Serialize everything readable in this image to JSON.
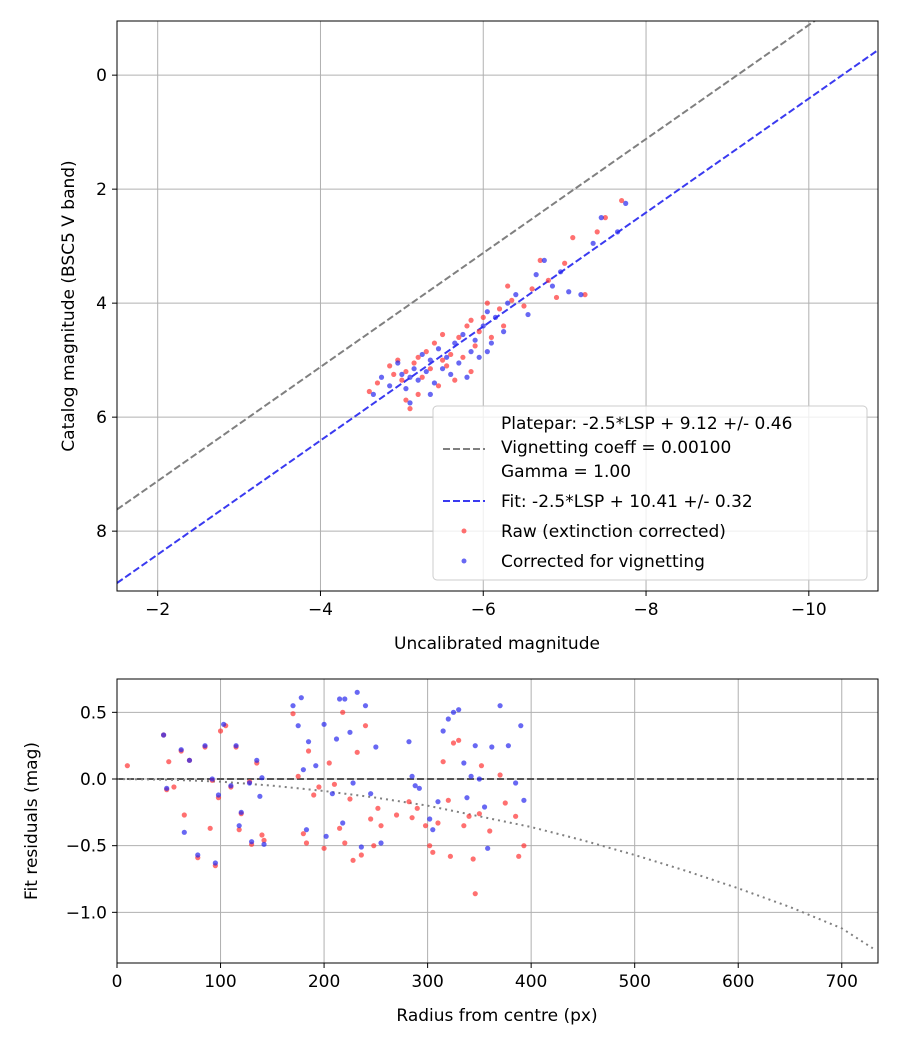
{
  "chart_data": [
    {
      "type": "scatter",
      "xlabel": "Uncalibrated magnitude",
      "ylabel": "Catalog magnitude (BSC5 V band)",
      "xlim": [
        -1.5,
        -10.85
      ],
      "ylim": [
        9.05,
        -0.95
      ],
      "x_inverted": true,
      "y_inverted": true,
      "grid": true,
      "xticks": [
        -2,
        -4,
        -6,
        -8,
        -10
      ],
      "xtick_labels": [
        "−2",
        "−4",
        "−6",
        "−8",
        "−10"
      ],
      "yticks": [
        0,
        2,
        4,
        6,
        8
      ],
      "ytick_labels": [
        "0",
        "2",
        "4",
        "6",
        "8"
      ],
      "legend_position": "lower-right",
      "lines": [
        {
          "id": "platepar",
          "slope": 1,
          "intercept": 9.12,
          "color": "#808080",
          "dash": "dashed",
          "legend": [
            "Platepar: -2.5*LSP + 9.12 +/- 0.46",
            "Vignetting coeff = 0.00100",
            "Gamma = 1.00"
          ]
        },
        {
          "id": "fit",
          "slope": 1,
          "intercept": 10.41,
          "color": "#3a3af0",
          "dash": "dashed",
          "legend": [
            "Fit: -2.5*LSP + 10.41 +/- 0.32"
          ]
        }
      ],
      "series": [
        {
          "id": "raw",
          "name": "Raw (extinction corrected)",
          "color": "#ff3333",
          "points": [
            [
              -4.6,
              5.55
            ],
            [
              -4.7,
              5.4
            ],
            [
              -4.85,
              5.1
            ],
            [
              -4.9,
              5.25
            ],
            [
              -4.95,
              5.0
            ],
            [
              -5.0,
              5.35
            ],
            [
              -5.05,
              5.2
            ],
            [
              -5.05,
              5.7
            ],
            [
              -5.1,
              5.85
            ],
            [
              -5.15,
              5.05
            ],
            [
              -5.2,
              4.95
            ],
            [
              -5.25,
              5.3
            ],
            [
              -5.3,
              4.85
            ],
            [
              -5.35,
              5.15
            ],
            [
              -5.4,
              4.7
            ],
            [
              -5.45,
              5.45
            ],
            [
              -5.5,
              4.55
            ],
            [
              -5.55,
              5.1
            ],
            [
              -5.6,
              4.9
            ],
            [
              -5.65,
              5.35
            ],
            [
              -5.7,
              4.6
            ],
            [
              -5.75,
              4.95
            ],
            [
              -5.8,
              4.4
            ],
            [
              -5.85,
              5.2
            ],
            [
              -5.9,
              4.75
            ],
            [
              -5.95,
              4.5
            ],
            [
              -6.0,
              4.25
            ],
            [
              -6.05,
              4.0
            ],
            [
              -6.1,
              4.6
            ],
            [
              -6.2,
              4.1
            ],
            [
              -6.25,
              4.4
            ],
            [
              -6.35,
              3.95
            ],
            [
              -6.5,
              4.05
            ],
            [
              -6.6,
              3.75
            ],
            [
              -6.7,
              3.25
            ],
            [
              -6.8,
              3.6
            ],
            [
              -6.9,
              3.9
            ],
            [
              -7.0,
              3.3
            ],
            [
              -7.1,
              2.85
            ],
            [
              -7.25,
              3.85
            ],
            [
              -7.4,
              2.75
            ],
            [
              -7.5,
              2.5
            ],
            [
              -7.7,
              2.2
            ],
            [
              -5.2,
              5.6
            ],
            [
              -5.5,
              5.0
            ],
            [
              -5.85,
              4.3
            ],
            [
              -6.3,
              3.7
            ]
          ]
        },
        {
          "id": "corrected",
          "name": "Corrected for vignetting",
          "color": "#2828ee",
          "points": [
            [
              -4.65,
              5.6
            ],
            [
              -4.75,
              5.3
            ],
            [
              -4.85,
              5.45
            ],
            [
              -4.95,
              5.05
            ],
            [
              -5.0,
              5.25
            ],
            [
              -5.05,
              5.5
            ],
            [
              -5.1,
              5.75
            ],
            [
              -5.15,
              5.15
            ],
            [
              -5.2,
              5.35
            ],
            [
              -5.25,
              4.9
            ],
            [
              -5.3,
              5.2
            ],
            [
              -5.35,
              5.0
            ],
            [
              -5.4,
              5.4
            ],
            [
              -5.45,
              4.8
            ],
            [
              -5.5,
              5.15
            ],
            [
              -5.55,
              4.95
            ],
            [
              -5.6,
              5.25
            ],
            [
              -5.65,
              4.7
            ],
            [
              -5.7,
              5.05
            ],
            [
              -5.75,
              4.55
            ],
            [
              -5.8,
              5.3
            ],
            [
              -5.85,
              4.85
            ],
            [
              -5.9,
              4.65
            ],
            [
              -5.95,
              4.95
            ],
            [
              -6.0,
              4.4
            ],
            [
              -6.05,
              4.15
            ],
            [
              -6.1,
              4.7
            ],
            [
              -6.15,
              4.25
            ],
            [
              -6.25,
              4.5
            ],
            [
              -6.3,
              4.0
            ],
            [
              -6.4,
              3.85
            ],
            [
              -6.55,
              4.2
            ],
            [
              -6.65,
              3.5
            ],
            [
              -6.75,
              3.25
            ],
            [
              -6.85,
              3.7
            ],
            [
              -6.95,
              3.45
            ],
            [
              -7.05,
              3.8
            ],
            [
              -7.2,
              3.85
            ],
            [
              -7.35,
              2.95
            ],
            [
              -7.45,
              2.5
            ],
            [
              -7.65,
              2.75
            ],
            [
              -7.75,
              2.25
            ],
            [
              -5.1,
              5.3
            ],
            [
              -5.35,
              5.6
            ],
            [
              -6.05,
              4.85
            ]
          ]
        }
      ]
    },
    {
      "type": "scatter",
      "xlabel": "Radius from centre (px)",
      "ylabel": "Fit residuals (mag)",
      "xlim": [
        0,
        735
      ],
      "ylim": [
        -1.38,
        0.75
      ],
      "grid": true,
      "xticks": [
        0,
        100,
        200,
        300,
        400,
        500,
        600,
        700
      ],
      "xtick_labels": [
        "0",
        "100",
        "200",
        "300",
        "400",
        "500",
        "600",
        "700"
      ],
      "yticks": [
        0.5,
        0.0,
        -0.5,
        -1.0
      ],
      "ytick_labels": [
        "0.5",
        "0.0",
        "−0.5",
        "−1.0"
      ],
      "zero_line": {
        "y": 0,
        "color": "#555555",
        "dash": "dashed"
      },
      "vignetting_curve": {
        "color": "#808080",
        "dash": "dotted",
        "points": [
          [
            0,
            0.0
          ],
          [
            50,
            -0.005
          ],
          [
            100,
            -0.02
          ],
          [
            150,
            -0.05
          ],
          [
            200,
            -0.09
          ],
          [
            250,
            -0.14
          ],
          [
            300,
            -0.2
          ],
          [
            350,
            -0.28
          ],
          [
            400,
            -0.36
          ],
          [
            450,
            -0.46
          ],
          [
            500,
            -0.57
          ],
          [
            550,
            -0.69
          ],
          [
            600,
            -0.82
          ],
          [
            650,
            -0.96
          ],
          [
            700,
            -1.12
          ],
          [
            730,
            -1.27
          ]
        ]
      },
      "series": [
        {
          "id": "raw",
          "name": "Raw (extinction corrected)",
          "color": "#ff3333",
          "points": [
            [
              10,
              0.1
            ],
            [
              45,
              0.33
            ],
            [
              48,
              -0.08
            ],
            [
              50,
              0.13
            ],
            [
              55,
              -0.06
            ],
            [
              62,
              0.21
            ],
            [
              65,
              -0.27
            ],
            [
              70,
              0.14
            ],
            [
              78,
              -0.59
            ],
            [
              85,
              0.24
            ],
            [
              90,
              -0.37
            ],
            [
              92,
              -0.01
            ],
            [
              95,
              -0.65
            ],
            [
              98,
              -0.14
            ],
            [
              100,
              0.36
            ],
            [
              105,
              0.4
            ],
            [
              110,
              -0.06
            ],
            [
              115,
              0.24
            ],
            [
              118,
              -0.38
            ],
            [
              120,
              -0.26
            ],
            [
              128,
              -0.02
            ],
            [
              130,
              -0.49
            ],
            [
              135,
              0.12
            ],
            [
              140,
              -0.42
            ],
            [
              142,
              -0.46
            ],
            [
              170,
              0.49
            ],
            [
              175,
              0.02
            ],
            [
              180,
              -0.41
            ],
            [
              183,
              -0.48
            ],
            [
              185,
              0.21
            ],
            [
              190,
              -0.12
            ],
            [
              195,
              -0.06
            ],
            [
              200,
              -0.52
            ],
            [
              205,
              0.12
            ],
            [
              210,
              -0.04
            ],
            [
              215,
              -0.37
            ],
            [
              218,
              0.5
            ],
            [
              220,
              -0.48
            ],
            [
              225,
              -0.15
            ],
            [
              228,
              -0.61
            ],
            [
              232,
              0.2
            ],
            [
              236,
              -0.57
            ],
            [
              240,
              0.4
            ],
            [
              245,
              -0.3
            ],
            [
              248,
              -0.5
            ],
            [
              252,
              -0.22
            ],
            [
              255,
              -0.35
            ],
            [
              270,
              -0.27
            ],
            [
              282,
              -0.17
            ],
            [
              285,
              -0.29
            ],
            [
              290,
              -0.22
            ],
            [
              298,
              -0.35
            ],
            [
              302,
              -0.5
            ],
            [
              305,
              -0.55
            ],
            [
              310,
              -0.33
            ],
            [
              315,
              0.13
            ],
            [
              320,
              -0.16
            ],
            [
              322,
              -0.58
            ],
            [
              325,
              0.27
            ],
            [
              330,
              0.29
            ],
            [
              335,
              -0.35
            ],
            [
              340,
              -0.28
            ],
            [
              344,
              -0.6
            ],
            [
              346,
              -0.86
            ],
            [
              350,
              -0.26
            ],
            [
              352,
              0.1
            ],
            [
              360,
              -0.39
            ],
            [
              370,
              0.03
            ],
            [
              375,
              -0.18
            ],
            [
              385,
              -0.28
            ],
            [
              388,
              -0.58
            ],
            [
              393,
              -0.5
            ]
          ]
        },
        {
          "id": "corrected",
          "name": "Corrected for vignetting",
          "color": "#2828ee",
          "points": [
            [
              45,
              0.33
            ],
            [
              48,
              -0.07
            ],
            [
              62,
              0.22
            ],
            [
              65,
              -0.4
            ],
            [
              70,
              0.14
            ],
            [
              78,
              -0.57
            ],
            [
              85,
              0.25
            ],
            [
              92,
              0.0
            ],
            [
              95,
              -0.63
            ],
            [
              98,
              -0.12
            ],
            [
              103,
              0.41
            ],
            [
              110,
              -0.05
            ],
            [
              115,
              0.25
            ],
            [
              118,
              -0.35
            ],
            [
              120,
              -0.25
            ],
            [
              128,
              -0.03
            ],
            [
              130,
              -0.47
            ],
            [
              135,
              0.14
            ],
            [
              138,
              -0.13
            ],
            [
              140,
              0.01
            ],
            [
              142,
              -0.49
            ],
            [
              170,
              0.55
            ],
            [
              175,
              0.4
            ],
            [
              178,
              0.61
            ],
            [
              180,
              0.07
            ],
            [
              183,
              -0.38
            ],
            [
              185,
              0.28
            ],
            [
              192,
              0.1
            ],
            [
              200,
              0.41
            ],
            [
              202,
              -0.43
            ],
            [
              208,
              -0.11
            ],
            [
              212,
              0.3
            ],
            [
              215,
              0.6
            ],
            [
              218,
              -0.33
            ],
            [
              220,
              0.6
            ],
            [
              225,
              0.35
            ],
            [
              228,
              -0.03
            ],
            [
              232,
              0.65
            ],
            [
              236,
              -0.51
            ],
            [
              240,
              0.55
            ],
            [
              245,
              -0.11
            ],
            [
              250,
              0.24
            ],
            [
              255,
              -0.48
            ],
            [
              282,
              0.28
            ],
            [
              285,
              0.02
            ],
            [
              288,
              -0.05
            ],
            [
              292,
              -0.07
            ],
            [
              302,
              -0.3
            ],
            [
              305,
              -0.38
            ],
            [
              310,
              -0.17
            ],
            [
              315,
              0.36
            ],
            [
              320,
              0.45
            ],
            [
              325,
              0.5
            ],
            [
              330,
              0.52
            ],
            [
              335,
              0.12
            ],
            [
              338,
              -0.14
            ],
            [
              342,
              0.02
            ],
            [
              346,
              0.25
            ],
            [
              350,
              0.0
            ],
            [
              355,
              -0.21
            ],
            [
              358,
              -0.52
            ],
            [
              362,
              0.24
            ],
            [
              370,
              0.55
            ],
            [
              378,
              0.25
            ],
            [
              385,
              -0.03
            ],
            [
              390,
              0.4
            ],
            [
              393,
              -0.16
            ]
          ]
        }
      ]
    }
  ]
}
